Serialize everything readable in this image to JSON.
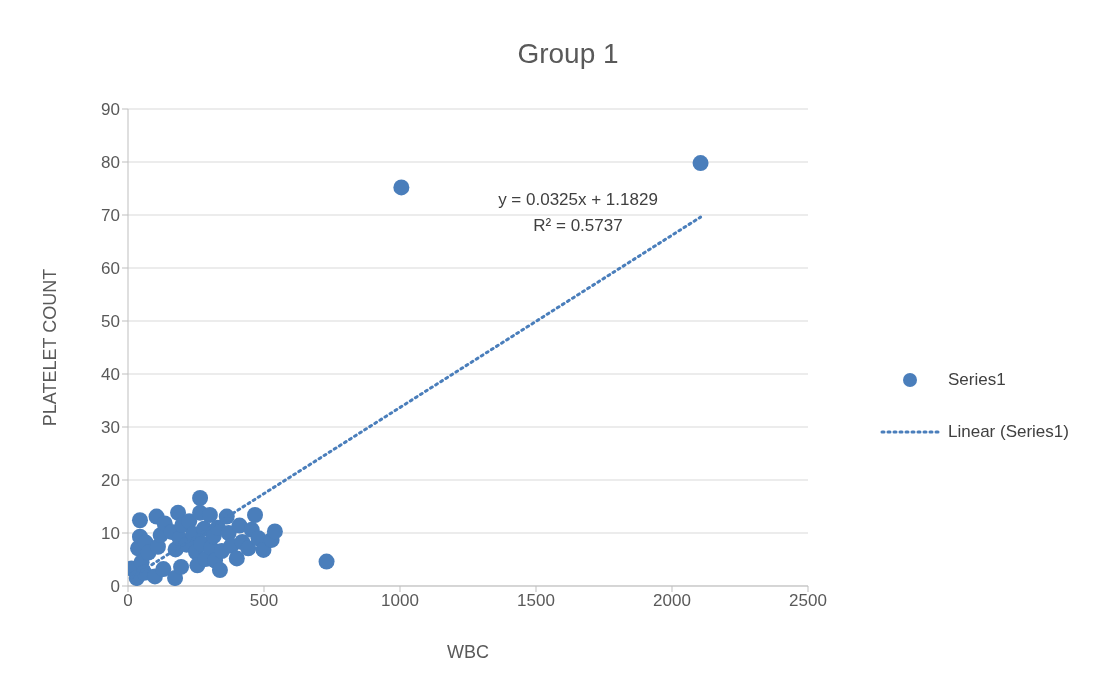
{
  "chart_data": {
    "type": "scatter",
    "title": "Group 1",
    "xlabel": "WBC",
    "ylabel": "PLATELET COUNT",
    "xlim": [
      0,
      2500
    ],
    "xticks": [
      0,
      500,
      1000,
      1500,
      2000,
      2500
    ],
    "ylim": [
      0,
      90
    ],
    "yticks": [
      0,
      10,
      20,
      30,
      40,
      50,
      60,
      70,
      80,
      90
    ],
    "grid": "y",
    "legend": "right",
    "marker": "circle",
    "annotations": [
      "y = 0.0325x + 1.1829",
      "R² = 0.5737"
    ],
    "series": [
      {
        "name": "Series1",
        "color": "#4a7ebb",
        "x": [
          13,
          32,
          37,
          44,
          44,
          50,
          60,
          65,
          75,
          99,
          105,
          110,
          120,
          130,
          135,
          160,
          173,
          175,
          184,
          190,
          195,
          200,
          215,
          225,
          240,
          250,
          255,
          265,
          265,
          270,
          280,
          285,
          301,
          305,
          315,
          320,
          330,
          338,
          345,
          363,
          370,
          380,
          400,
          410,
          420,
          442,
          455,
          467,
          480,
          498,
          528,
          540,
          730,
          1005,
          2105
        ],
        "values": [
          3.3,
          1.5,
          7.1,
          9.3,
          12.4,
          4.5,
          2.5,
          8.2,
          6.3,
          1.8,
          13.1,
          7.4,
          9.6,
          3.2,
          11.8,
          10.2,
          1.5,
          6.9,
          13.8,
          9.0,
          3.6,
          11.5,
          7.8,
          12.2,
          9.8,
          6.4,
          3.9,
          13.8,
          16.6,
          8.0,
          10.8,
          5.1,
          13.4,
          7.2,
          9.4,
          4.8,
          11.0,
          3.0,
          6.6,
          13.1,
          10.0,
          7.6,
          5.2,
          11.4,
          8.3,
          7.1,
          10.6,
          13.4,
          9.0,
          6.8,
          8.7,
          10.3,
          4.6,
          75.2,
          79.8
        ]
      },
      {
        "name": "Linear (Series1)",
        "color": "#4a7ebb",
        "type": "line",
        "line_style": "dotted",
        "marker": "none",
        "x": [
          13,
          2105
        ],
        "values": [
          1.6,
          69.6
        ]
      }
    ]
  }
}
